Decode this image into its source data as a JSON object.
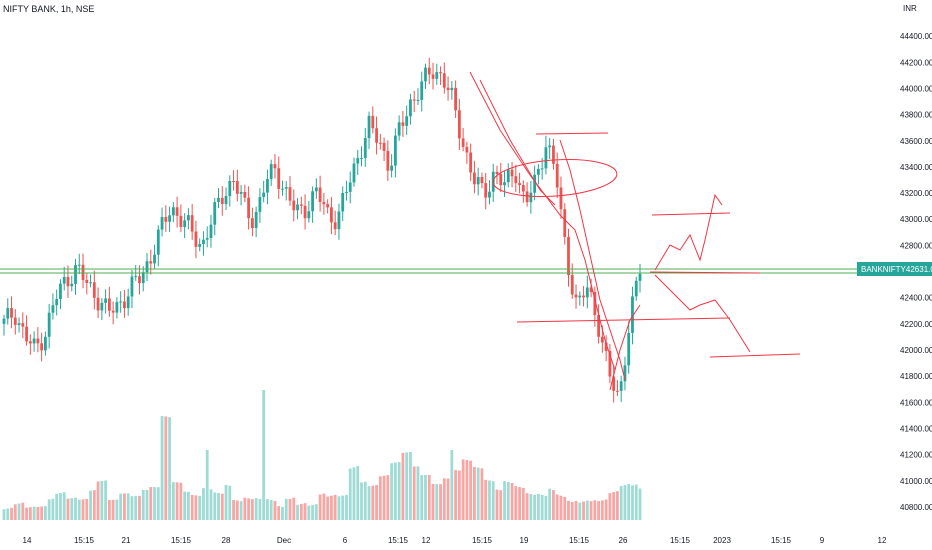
{
  "header": {
    "symbol": "NIFTY BANK, 1h, NSE",
    "currency": "INR"
  },
  "price_tag": {
    "ticker": "BANKNIFTY",
    "price": "42631.00"
  },
  "colors": {
    "up": "#26a69a",
    "down": "#ef5350",
    "volume_up": "#9fdbd5",
    "volume_down": "#f7a6a4",
    "drawing": "#f23645",
    "hline": "#4caf50"
  },
  "chart_data": {
    "type": "candlestick",
    "title": "NIFTY BANK, 1h, NSE",
    "ylim": [
      40700,
      44600
    ],
    "y_ticks": [
      "44400.00",
      "44200.00",
      "44000.00",
      "43800.00",
      "43600.00",
      "43400.00",
      "43200.00",
      "43000.00",
      "42800.00",
      "42600.00",
      "42400.00",
      "42200.00",
      "42000.00",
      "41800.00",
      "41600.00",
      "41400.00",
      "41200.00",
      "41000.00",
      "40800.00"
    ],
    "x_ticks": [
      "14",
      "15:15",
      "21",
      "15:15",
      "28",
      "Dec",
      "6",
      "15:15",
      "12",
      "15:15",
      "19",
      "15:15",
      "26",
      "15:15",
      "2023",
      "15:15",
      "9",
      "12"
    ],
    "current_price": 42631.0,
    "price_path": [
      42200,
      42300,
      42100,
      42000,
      42150,
      42400,
      42550,
      42620,
      42500,
      42400,
      42280,
      42350,
      42450,
      42550,
      42700,
      42900,
      43100,
      43000,
      42900,
      42800,
      43000,
      43200,
      43300,
      43100,
      43000,
      43250,
      43400,
      43200,
      43050,
      43100,
      43200,
      43050,
      43000,
      43250,
      43500,
      43700,
      43600,
      43400,
      43700,
      43900,
      44000,
      44150,
      44100,
      43900,
      43600,
      43300,
      43200,
      43350,
      43250,
      43400,
      43100,
      43300,
      43600,
      43300,
      42700,
      42300,
      42500,
      42200,
      41800,
      41650,
      42200,
      42631
    ],
    "volume_path": [
      18,
      22,
      15,
      14,
      20,
      24,
      18,
      16,
      22,
      28,
      14,
      18,
      16,
      20,
      22,
      70,
      26,
      20,
      18,
      24,
      22,
      30,
      18,
      22,
      24,
      26,
      20,
      34,
      22,
      18,
      28,
      24,
      22,
      44,
      30,
      26,
      32,
      40,
      46,
      36,
      30,
      24,
      28,
      34,
      42,
      38,
      30,
      24,
      32,
      30,
      26,
      28,
      38,
      34,
      30,
      26,
      24,
      22,
      28,
      32,
      30,
      26
    ]
  }
}
